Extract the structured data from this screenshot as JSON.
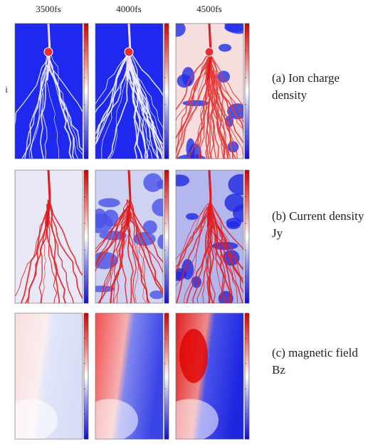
{
  "columns": [
    "3500fs",
    "4000fs",
    "4500fs"
  ],
  "side_mark": "i",
  "rows": [
    {
      "label": "(a) Ion charge density"
    },
    {
      "label": "(b) Current density Jy"
    },
    {
      "label": "(c) magnetic field Bz"
    }
  ]
}
